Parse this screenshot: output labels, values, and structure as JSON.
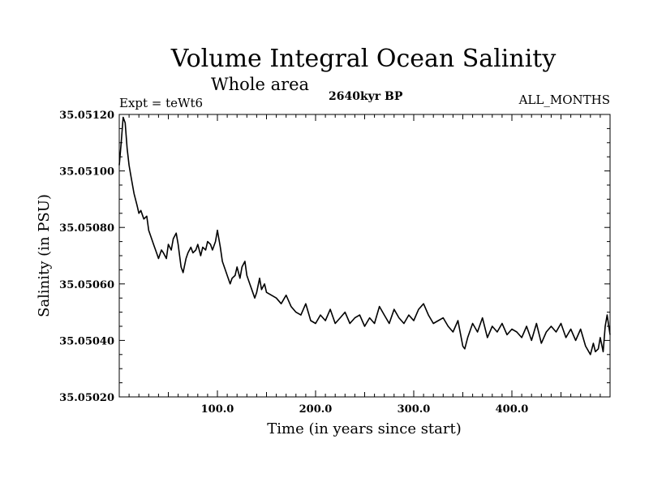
{
  "chart_data": {
    "type": "line",
    "title": "Volume Integral Ocean Salinity",
    "subtitle": "Whole area",
    "experiment": "Expt = teWt6",
    "period": "2640kyr BP",
    "months": "ALL_MONTHS",
    "xlabel": "Time (in years since start)",
    "ylabel": "Salinity (in PSU)",
    "xlim": [
      0,
      500
    ],
    "ylim": [
      35.0502,
      35.0512
    ],
    "x_ticks": [
      100,
      200,
      300,
      400
    ],
    "x_tick_labels": [
      "100.0",
      "200.0",
      "300.0",
      "400.0"
    ],
    "y_ticks": [
      35.0502,
      35.0504,
      35.0506,
      35.0508,
      35.051,
      35.0512
    ],
    "y_tick_labels": [
      "35.05020",
      "35.05040",
      "35.05060",
      "35.05080",
      "35.05100",
      "35.05120"
    ],
    "series": [
      {
        "name": "salinity",
        "x": [
          0,
          2,
          4,
          6,
          8,
          10,
          12,
          15,
          18,
          20,
          22,
          25,
          28,
          30,
          33,
          35,
          38,
          40,
          43,
          45,
          48,
          50,
          53,
          55,
          58,
          60,
          63,
          65,
          68,
          70,
          73,
          75,
          78,
          80,
          83,
          85,
          88,
          90,
          93,
          95,
          98,
          100,
          103,
          105,
          108,
          110,
          113,
          115,
          118,
          120,
          123,
          125,
          128,
          130,
          133,
          135,
          138,
          140,
          143,
          145,
          148,
          150,
          155,
          160,
          165,
          170,
          175,
          180,
          185,
          190,
          195,
          200,
          205,
          210,
          215,
          220,
          225,
          230,
          235,
          240,
          245,
          250,
          255,
          260,
          265,
          270,
          275,
          280,
          285,
          290,
          295,
          300,
          305,
          310,
          315,
          320,
          325,
          330,
          335,
          340,
          345,
          350,
          352,
          355,
          360,
          365,
          370,
          375,
          380,
          385,
          390,
          395,
          400,
          405,
          410,
          415,
          420,
          425,
          430,
          435,
          440,
          445,
          450,
          455,
          460,
          465,
          470,
          475,
          480,
          483,
          485,
          488,
          490,
          493,
          495,
          497,
          500
        ],
        "values": [
          35.05102,
          35.0511,
          35.05119,
          35.05117,
          35.05108,
          35.05102,
          35.05098,
          35.05092,
          35.05088,
          35.05085,
          35.05086,
          35.05083,
          35.05084,
          35.05079,
          35.05076,
          35.05074,
          35.05071,
          35.05069,
          35.05072,
          35.05071,
          35.05069,
          35.05074,
          35.05072,
          35.05076,
          35.05078,
          35.05074,
          35.05066,
          35.05064,
          35.05069,
          35.05071,
          35.05073,
          35.05071,
          35.05072,
          35.05074,
          35.0507,
          35.05073,
          35.05072,
          35.05075,
          35.05074,
          35.05072,
          35.05075,
          35.05079,
          35.05073,
          35.05068,
          35.05065,
          35.05063,
          35.0506,
          35.05062,
          35.05063,
          35.05066,
          35.05062,
          35.05066,
          35.05068,
          35.05063,
          35.0506,
          35.05058,
          35.05055,
          35.05057,
          35.05062,
          35.05058,
          35.0506,
          35.05057,
          35.05056,
          35.05055,
          35.05053,
          35.05056,
          35.05052,
          35.0505,
          35.05049,
          35.05053,
          35.05047,
          35.05046,
          35.05049,
          35.05047,
          35.05051,
          35.05046,
          35.05048,
          35.0505,
          35.05046,
          35.05048,
          35.05049,
          35.05045,
          35.05048,
          35.05046,
          35.05052,
          35.05049,
          35.05046,
          35.05051,
          35.05048,
          35.05046,
          35.05049,
          35.05047,
          35.05051,
          35.05053,
          35.05049,
          35.05046,
          35.05047,
          35.05048,
          35.05045,
          35.05043,
          35.05047,
          35.05038,
          35.05037,
          35.05041,
          35.05046,
          35.05043,
          35.05048,
          35.05041,
          35.05045,
          35.05043,
          35.05046,
          35.05042,
          35.05044,
          35.05043,
          35.05041,
          35.05045,
          35.0504,
          35.05046,
          35.05039,
          35.05043,
          35.05045,
          35.05043,
          35.05046,
          35.05041,
          35.05044,
          35.0504,
          35.05044,
          35.05038,
          35.05035,
          35.05039,
          35.05036,
          35.05037,
          35.05041,
          35.05036,
          35.05045,
          35.05049,
          35.05042
        ]
      }
    ]
  }
}
